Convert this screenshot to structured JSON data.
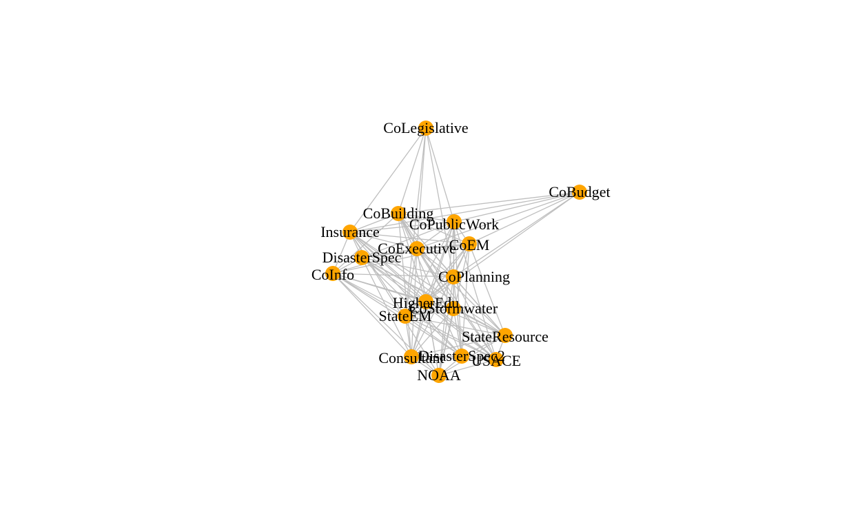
{
  "colors": {
    "node": "#ffa500",
    "edge": "#bebebe",
    "label": "#000000",
    "background": "#ffffff"
  },
  "nodes": [
    {
      "id": "CoLegislative",
      "label": "CoLegislative"
    },
    {
      "id": "CoBudget",
      "label": "CoBudget"
    },
    {
      "id": "CoBuilding",
      "label": "CoBuilding"
    },
    {
      "id": "CoPublicWork",
      "label": "CoPublicWork"
    },
    {
      "id": "Insurance",
      "label": "Insurance"
    },
    {
      "id": "CoExecutive",
      "label": "CoExecutive"
    },
    {
      "id": "CoEM",
      "label": "CoEM"
    },
    {
      "id": "DisasterSpec",
      "label": "DisasterSpec"
    },
    {
      "id": "CoInfo",
      "label": "CoInfo"
    },
    {
      "id": "CoPlanning",
      "label": "CoPlanning"
    },
    {
      "id": "HigherEdu",
      "label": "HigherEdu"
    },
    {
      "id": "CoStormwater",
      "label": "CoStormwater"
    },
    {
      "id": "StateEM",
      "label": "StateEM"
    },
    {
      "id": "StateResource",
      "label": "StateResource"
    },
    {
      "id": "Consultant",
      "label": "Consultant"
    },
    {
      "id": "DisasterSpec2",
      "label": "DisasterSpec2"
    },
    {
      "id": "USACE",
      "label": "USACE"
    },
    {
      "id": "NOAA",
      "label": "NOAA"
    }
  ]
}
